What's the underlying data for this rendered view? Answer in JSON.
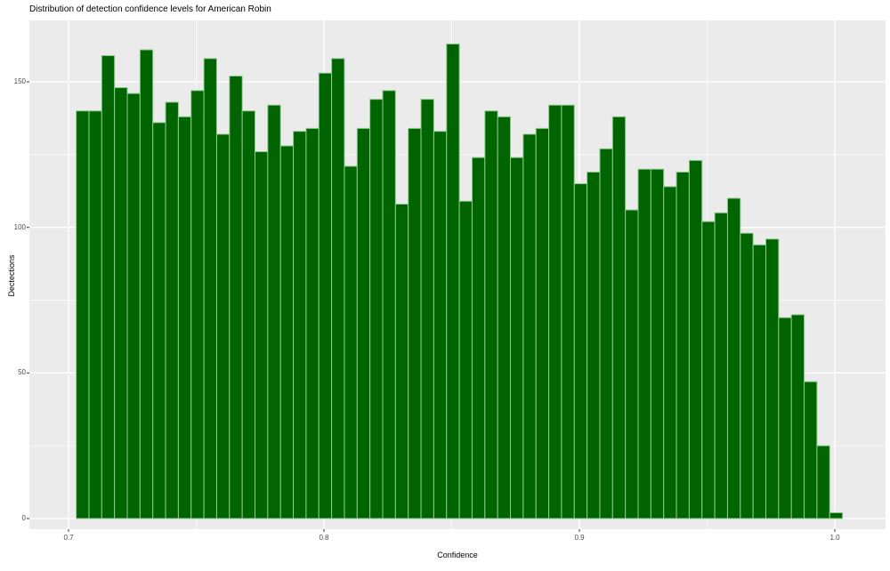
{
  "title": "Distribution of detection confidence levels for American Robin",
  "x_axis": {
    "label": "Confidence",
    "tick_labels": [
      "0.7",
      "0.8",
      "0.9",
      "1.0"
    ]
  },
  "y_axis": {
    "label": "Dectections",
    "tick_labels": [
      "0",
      "50",
      "100",
      "150"
    ]
  },
  "colors": {
    "bar_fill": "#006400",
    "bar_border": "#8fca8f",
    "panel_bg": "#ebebeb",
    "grid_major": "#ffffff",
    "grid_minor": "#ffffff",
    "tick_mark": "#333333",
    "tick_text": "#4d4d4d",
    "title_text": "#000000"
  },
  "chart_data": {
    "type": "bar",
    "subtype": "histogram",
    "title": "Distribution of detection confidence levels for American Robin",
    "xlabel": "Confidence",
    "ylabel": "Dectections",
    "bin_start": 0.703,
    "bin_width": 0.005,
    "n_bins": 60,
    "x_ticks": [
      0.7,
      0.8,
      0.9,
      1.0
    ],
    "x_minor_ticks": [
      0.75,
      0.85,
      0.95
    ],
    "y_ticks": [
      0,
      50,
      100,
      150
    ],
    "y_minor_ticks": [
      25,
      75,
      125
    ],
    "xlim": [
      0.6847,
      1.0199
    ],
    "ylim": [
      -3.7,
      171.1
    ],
    "grid": true,
    "legend": false,
    "values": [
      140,
      140,
      159,
      148,
      146,
      161,
      136,
      143,
      138,
      147,
      158,
      132,
      152,
      140,
      126,
      142,
      128,
      133,
      134,
      153,
      158,
      121,
      134,
      144,
      147,
      108,
      134,
      144,
      133,
      163,
      109,
      124,
      140,
      138,
      124,
      132,
      134,
      142,
      142,
      115,
      119,
      127,
      138,
      106,
      120,
      120,
      114,
      119,
      123,
      102,
      105,
      110,
      98,
      94,
      96,
      69,
      70,
      47,
      25,
      2
    ]
  }
}
